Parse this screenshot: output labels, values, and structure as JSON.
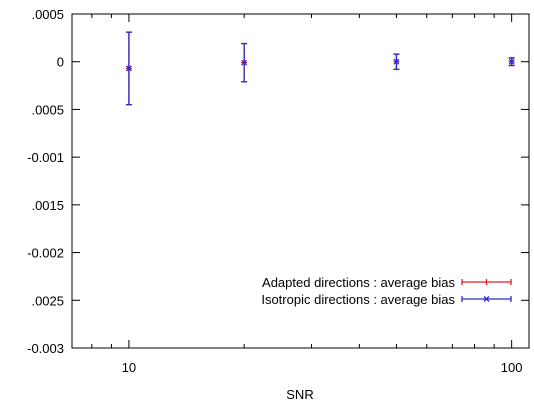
{
  "chart_data": {
    "type": "scatter",
    "xlabel": "SNR",
    "ylabel": "",
    "title": "",
    "xscale": "log",
    "xlim": [
      7.1,
      111
    ],
    "ylim": [
      -0.003,
      0.0005
    ],
    "x_ticks": [
      {
        "value": 10,
        "label": "10"
      },
      {
        "value": 100,
        "label": "100"
      }
    ],
    "y_ticks": [
      {
        "value": 0.0005,
        "label": ".0005"
      },
      {
        "value": 0,
        "label": "0"
      },
      {
        "value": -0.0005,
        "label": ".0005"
      },
      {
        "value": -0.001,
        "label": "-0.001"
      },
      {
        "value": -0.0015,
        "label": ".0015"
      },
      {
        "value": -0.002,
        "label": "-0.002"
      },
      {
        "value": -0.0025,
        "label": ".0025"
      },
      {
        "value": -0.003,
        "label": "-0.003"
      }
    ],
    "grid": false,
    "legend_position": "bottom-right",
    "series": [
      {
        "name": "Adapted directions : average bias",
        "color": "#e41a1c",
        "marker": "plus",
        "points": [
          {
            "x": 10,
            "y": -7e-05,
            "lo": -0.00045,
            "hi": 0.00031
          },
          {
            "x": 20,
            "y": -1e-05,
            "lo": -0.00021,
            "hi": 0.00019
          },
          {
            "x": 50,
            "y": 0.0,
            "lo": -8e-05,
            "hi": 8e-05
          },
          {
            "x": 100,
            "y": 0.0,
            "lo": -4e-05,
            "hi": 4e-05
          }
        ]
      },
      {
        "name": "Isotropic directions : average bias",
        "color": "#2b2bd6",
        "marker": "cross",
        "points": [
          {
            "x": 10,
            "y": -7e-05,
            "lo": -0.00045,
            "hi": 0.00031
          },
          {
            "x": 20,
            "y": -1e-05,
            "lo": -0.00021,
            "hi": 0.00019
          },
          {
            "x": 50,
            "y": 0.0,
            "lo": -8e-05,
            "hi": 8e-05
          },
          {
            "x": 100,
            "y": 0.0,
            "lo": -4e-05,
            "hi": 4e-05
          }
        ]
      }
    ]
  }
}
